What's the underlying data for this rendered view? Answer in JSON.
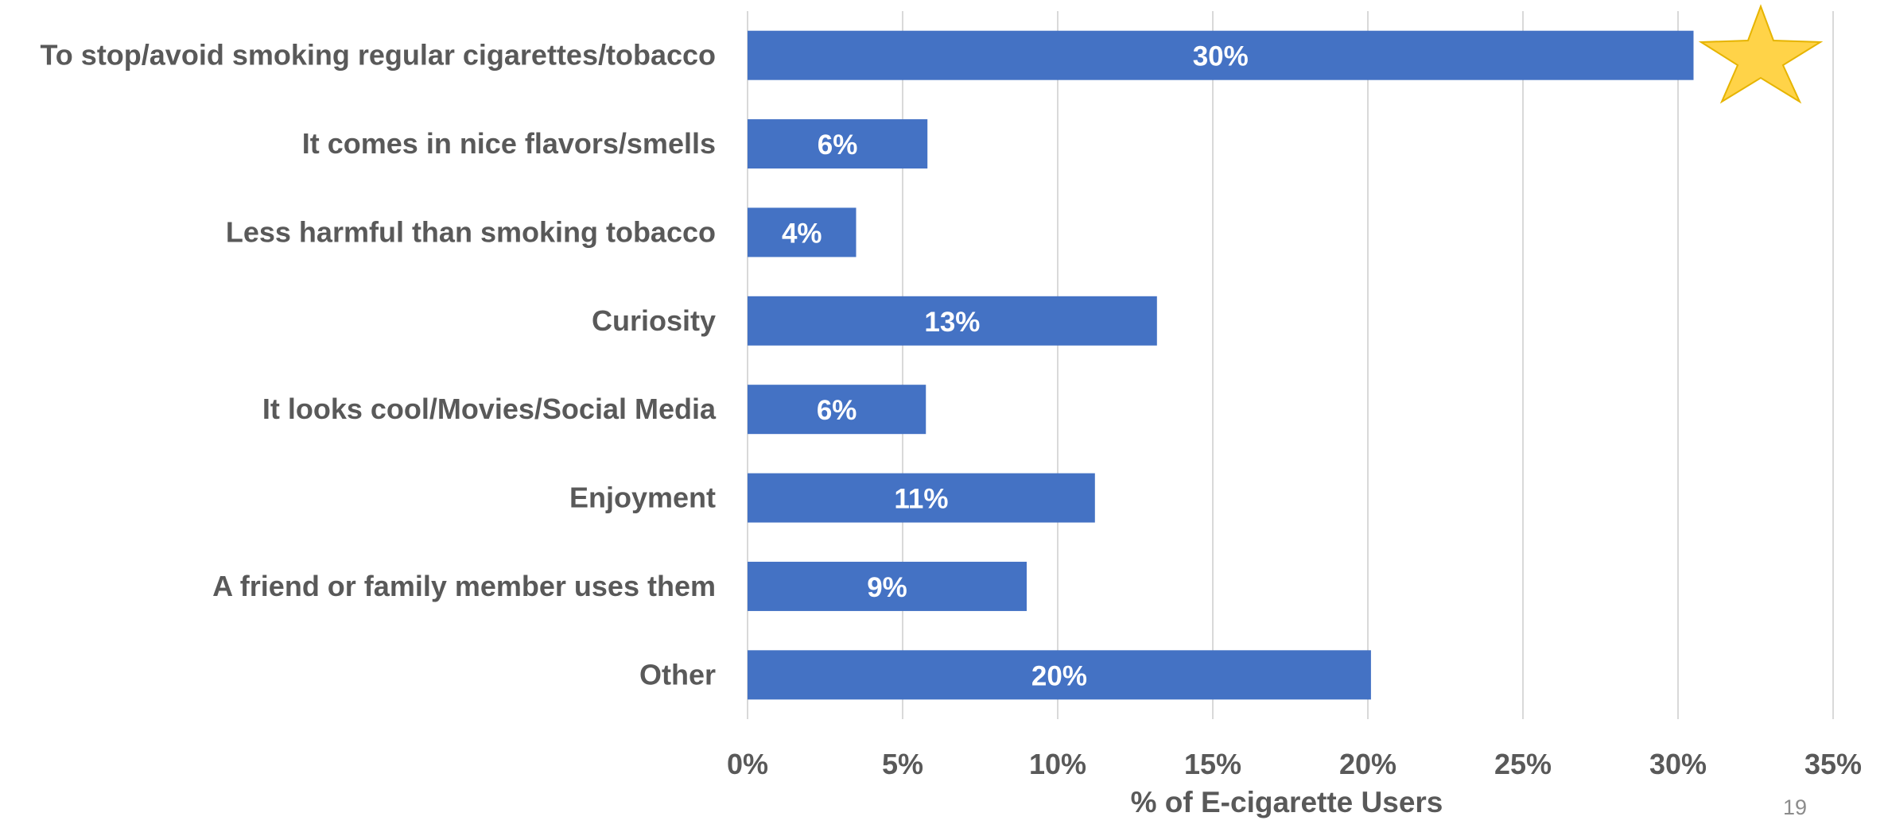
{
  "chart_data": {
    "type": "bar",
    "orientation": "horizontal",
    "categories": [
      "To stop/avoid smoking regular cigarettes/tobacco",
      "It comes in nice flavors/smells",
      "Less harmful than smoking tobacco",
      "Curiosity",
      "It looks cool/Movies/Social Media",
      "Enjoyment",
      "A friend or family member uses them",
      "Other"
    ],
    "values": [
      30.5,
      5.8,
      3.5,
      13.2,
      5.75,
      11.2,
      9.0,
      20.1
    ],
    "data_labels": [
      "30%",
      "6%",
      "4%",
      "13%",
      "6%",
      "11%",
      "9%",
      "20%"
    ],
    "xlabel": "% of E-cigarette Users",
    "ylabel": "",
    "xlim": [
      0,
      35
    ],
    "x_ticks": [
      0,
      5,
      10,
      15,
      20,
      25,
      30,
      35
    ],
    "x_tick_labels": [
      "0%",
      "5%",
      "10%",
      "15%",
      "20%",
      "25%",
      "30%",
      "35%"
    ],
    "grid": "vertical",
    "legend": "none",
    "bar_color": "#4472C4",
    "highlight_icon": "star-icon",
    "highlight_color": "#FFD348"
  },
  "page_number": "19"
}
